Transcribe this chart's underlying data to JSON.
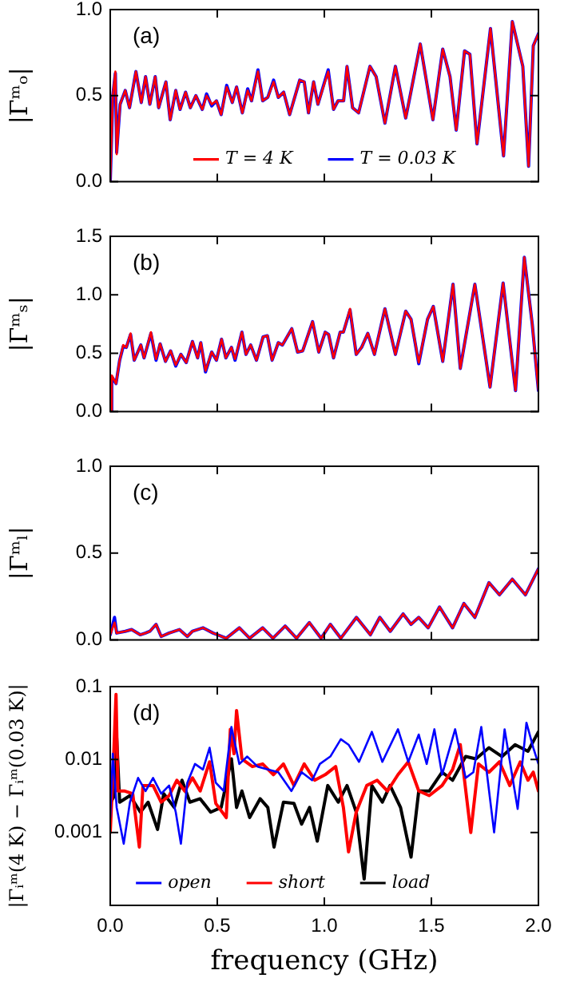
{
  "chart_data": [
    {
      "type": "line",
      "ylabel": "|Γᵐₒ|",
      "annotations": [
        "(a)"
      ],
      "grid": false,
      "legend": "bottom",
      "tick_labels": "y",
      "line_style": "solid",
      "xlim": [
        0,
        2
      ],
      "xticks": [
        0,
        0.5,
        1,
        1.5,
        2
      ],
      "ylim": [
        0,
        1
      ],
      "yticks": [
        {
          "value": 0,
          "label": "0.0"
        },
        {
          "value": 0.5,
          "label": "0.5"
        },
        {
          "value": 1,
          "label": "1.0"
        }
      ],
      "series": [
        {
          "name": "T = 4 K",
          "color": "#ff0000",
          "x": [
            0,
            0.012,
            0.024,
            0.03,
            0.046,
            0.07,
            0.09,
            0.12,
            0.145,
            0.165,
            0.185,
            0.21,
            0.226,
            0.26,
            0.28,
            0.306,
            0.326,
            0.352,
            0.374,
            0.4,
            0.43,
            0.45,
            0.474,
            0.496,
            0.518,
            0.544,
            0.57,
            0.59,
            0.617,
            0.642,
            0.66,
            0.69,
            0.712,
            0.736,
            0.763,
            0.785,
            0.81,
            0.838,
            0.885,
            0.906,
            0.926,
            0.95,
            0.97,
            1.018,
            1.043,
            1.064,
            1.09,
            1.106,
            1.132,
            1.16,
            1.213,
            1.242,
            1.283,
            1.332,
            1.38,
            1.404,
            1.448,
            1.507,
            1.553,
            1.587,
            1.616,
            1.655,
            1.68,
            1.713,
            1.776,
            1.837,
            1.878,
            1.927,
            1.954,
            1.976,
            2.0
          ],
          "values": [
            0,
            0.5,
            0.64,
            0.16,
            0.45,
            0.53,
            0.43,
            0.64,
            0.46,
            0.61,
            0.45,
            0.61,
            0.43,
            0.58,
            0.36,
            0.53,
            0.42,
            0.52,
            0.43,
            0.5,
            0.42,
            0.5,
            0.45,
            0.47,
            0.39,
            0.55,
            0.46,
            0.55,
            0.4,
            0.53,
            0.47,
            0.64,
            0.47,
            0.49,
            0.58,
            0.49,
            0.52,
            0.39,
            0.59,
            0.58,
            0.4,
            0.58,
            0.45,
            0.64,
            0.42,
            0.47,
            0.47,
            0.67,
            0.43,
            0.4,
            0.67,
            0.61,
            0.34,
            0.67,
            0.37,
            0.52,
            0.8,
            0.36,
            0.77,
            0.61,
            0.3,
            0.76,
            0.74,
            0.22,
            0.89,
            0.15,
            0.93,
            0.67,
            0.09,
            0.79,
            0.86
          ]
        },
        {
          "name": "T = 0.03 K",
          "color": "#0000ff",
          "x": [
            0,
            0.012,
            0.024,
            0.03,
            0.046,
            0.07,
            0.09,
            0.12,
            0.145,
            0.165,
            0.185,
            0.21,
            0.226,
            0.26,
            0.28,
            0.306,
            0.326,
            0.352,
            0.374,
            0.4,
            0.43,
            0.45,
            0.474,
            0.496,
            0.518,
            0.544,
            0.57,
            0.59,
            0.617,
            0.642,
            0.66,
            0.69,
            0.712,
            0.736,
            0.763,
            0.785,
            0.81,
            0.838,
            0.885,
            0.906,
            0.926,
            0.95,
            0.97,
            1.018,
            1.043,
            1.064,
            1.09,
            1.106,
            1.132,
            1.16,
            1.213,
            1.242,
            1.283,
            1.332,
            1.38,
            1.404,
            1.448,
            1.507,
            1.553,
            1.587,
            1.616,
            1.655,
            1.68,
            1.713,
            1.776,
            1.837,
            1.878,
            1.927,
            1.954,
            1.976,
            2.0
          ],
          "values": [
            0,
            0.5,
            0.63,
            0.17,
            0.45,
            0.53,
            0.43,
            0.64,
            0.46,
            0.61,
            0.45,
            0.61,
            0.43,
            0.58,
            0.36,
            0.53,
            0.42,
            0.52,
            0.43,
            0.5,
            0.42,
            0.51,
            0.44,
            0.47,
            0.39,
            0.56,
            0.46,
            0.55,
            0.4,
            0.54,
            0.47,
            0.65,
            0.47,
            0.49,
            0.59,
            0.49,
            0.52,
            0.39,
            0.59,
            0.58,
            0.4,
            0.58,
            0.45,
            0.65,
            0.42,
            0.47,
            0.47,
            0.67,
            0.43,
            0.4,
            0.67,
            0.61,
            0.34,
            0.67,
            0.37,
            0.52,
            0.8,
            0.36,
            0.77,
            0.61,
            0.3,
            0.76,
            0.74,
            0.22,
            0.89,
            0.15,
            0.93,
            0.67,
            0.09,
            0.79,
            0.86
          ]
        }
      ]
    },
    {
      "type": "line",
      "ylabel": "|Γᵐₛ|",
      "annotations": [
        "(b)"
      ],
      "grid": false,
      "tick_labels": "y",
      "line_style": "solid",
      "xlim": [
        0,
        2
      ],
      "xticks": [
        0,
        0.5,
        1,
        1.5,
        2
      ],
      "ylim": [
        0,
        1.5
      ],
      "yticks": [
        {
          "value": 0,
          "label": "0.0"
        },
        {
          "value": 0.5,
          "label": "0.5"
        },
        {
          "value": 1,
          "label": "1.0"
        },
        {
          "value": 1.5,
          "label": "1.5"
        }
      ],
      "series": [
        {
          "color": "#ff0000",
          "x": [
            0,
            0.007,
            0.027,
            0.044,
            0.061,
            0.075,
            0.095,
            0.112,
            0.143,
            0.158,
            0.19,
            0.214,
            0.233,
            0.258,
            0.282,
            0.306,
            0.33,
            0.355,
            0.384,
            0.408,
            0.423,
            0.445,
            0.474,
            0.496,
            0.52,
            0.54,
            0.566,
            0.583,
            0.615,
            0.634,
            0.656,
            0.683,
            0.714,
            0.734,
            0.756,
            0.785,
            0.804,
            0.848,
            0.875,
            0.899,
            0.945,
            0.974,
            1.004,
            1.02,
            1.043,
            1.074,
            1.089,
            1.12,
            1.149,
            1.174,
            1.203,
            1.234,
            1.283,
            1.332,
            1.38,
            1.405,
            1.441,
            1.482,
            1.509,
            1.553,
            1.601,
            1.635,
            1.703,
            1.774,
            1.835,
            1.893,
            1.934,
            1.971,
            2.0
          ],
          "values": [
            0,
            0.31,
            0.24,
            0.44,
            0.57,
            0.55,
            0.67,
            0.44,
            0.57,
            0.46,
            0.68,
            0.45,
            0.58,
            0.43,
            0.52,
            0.4,
            0.49,
            0.42,
            0.6,
            0.46,
            0.59,
            0.35,
            0.51,
            0.44,
            0.62,
            0.46,
            0.55,
            0.45,
            0.68,
            0.49,
            0.57,
            0.44,
            0.64,
            0.65,
            0.44,
            0.59,
            0.57,
            0.71,
            0.51,
            0.52,
            0.77,
            0.51,
            0.68,
            0.66,
            0.46,
            0.68,
            0.68,
            0.88,
            0.49,
            0.55,
            0.67,
            0.49,
            0.88,
            0.49,
            0.86,
            0.79,
            0.42,
            0.79,
            0.9,
            0.43,
            1.09,
            0.37,
            1.09,
            0.21,
            1.1,
            0.18,
            1.32,
            0.75,
            0.18
          ]
        },
        {
          "color": "#0000ff",
          "x": [
            0,
            0.007,
            0.027,
            0.044,
            0.061,
            0.075,
            0.095,
            0.112,
            0.143,
            0.158,
            0.19,
            0.214,
            0.233,
            0.258,
            0.282,
            0.306,
            0.33,
            0.355,
            0.384,
            0.408,
            0.423,
            0.445,
            0.474,
            0.496,
            0.52,
            0.54,
            0.566,
            0.583,
            0.615,
            0.634,
            0.656,
            0.683,
            0.714,
            0.734,
            0.756,
            0.785,
            0.804,
            0.848,
            0.875,
            0.899,
            0.945,
            0.974,
            1.004,
            1.02,
            1.043,
            1.074,
            1.089,
            1.12,
            1.149,
            1.174,
            1.203,
            1.234,
            1.283,
            1.332,
            1.38,
            1.405,
            1.441,
            1.482,
            1.509,
            1.553,
            1.601,
            1.635,
            1.703,
            1.774,
            1.835,
            1.893,
            1.934,
            1.971,
            2.0
          ],
          "values": [
            0,
            0.3,
            0.24,
            0.44,
            0.56,
            0.55,
            0.66,
            0.44,
            0.57,
            0.46,
            0.67,
            0.44,
            0.58,
            0.43,
            0.52,
            0.39,
            0.49,
            0.42,
            0.6,
            0.46,
            0.59,
            0.34,
            0.51,
            0.44,
            0.62,
            0.46,
            0.55,
            0.44,
            0.68,
            0.49,
            0.57,
            0.44,
            0.64,
            0.65,
            0.44,
            0.59,
            0.57,
            0.71,
            0.51,
            0.52,
            0.77,
            0.51,
            0.68,
            0.66,
            0.46,
            0.68,
            0.68,
            0.87,
            0.49,
            0.55,
            0.67,
            0.49,
            0.88,
            0.49,
            0.86,
            0.79,
            0.41,
            0.79,
            0.9,
            0.43,
            1.09,
            0.37,
            1.09,
            0.21,
            1.1,
            0.18,
            1.32,
            0.75,
            0.18
          ]
        }
      ]
    },
    {
      "type": "line",
      "ylabel": "|Γᵐₗ|",
      "annotations": [
        "(c)"
      ],
      "grid": false,
      "tick_labels": "y",
      "line_style": "solid",
      "xlim": [
        0,
        2
      ],
      "xticks": [
        0,
        0.5,
        1,
        1.5,
        2
      ],
      "ylim": [
        0,
        1
      ],
      "yticks": [
        {
          "value": 0,
          "label": "0.0"
        },
        {
          "value": 0.5,
          "label": "0.5"
        },
        {
          "value": 1,
          "label": "1.0"
        }
      ],
      "series": [
        {
          "color": "#ff0000",
          "x": [
            0,
            0.02,
            0.03,
            0.07,
            0.1,
            0.14,
            0.165,
            0.185,
            0.214,
            0.238,
            0.275,
            0.323,
            0.36,
            0.384,
            0.433,
            0.48,
            0.542,
            0.603,
            0.651,
            0.712,
            0.76,
            0.817,
            0.87,
            0.93,
            0.985,
            1.028,
            1.077,
            1.15,
            1.215,
            1.259,
            1.308,
            1.368,
            1.405,
            1.441,
            1.485,
            1.538,
            1.599,
            1.652,
            1.703,
            1.769,
            1.818,
            1.878,
            1.939,
            2.0
          ],
          "values": [
            0.03,
            0.1,
            0.04,
            0.05,
            0.06,
            0.03,
            0.04,
            0.05,
            0.09,
            0.02,
            0.04,
            0.06,
            0.02,
            0.05,
            0.07,
            0.04,
            0.01,
            0.07,
            0.01,
            0.07,
            0.01,
            0.08,
            0.01,
            0.1,
            0.01,
            0.09,
            0.01,
            0.13,
            0.03,
            0.13,
            0.05,
            0.15,
            0.09,
            0.13,
            0.07,
            0.19,
            0.07,
            0.21,
            0.13,
            0.33,
            0.26,
            0.35,
            0.26,
            0.41
          ]
        },
        {
          "color": "#0000ff",
          "x": [
            0,
            0.02,
            0.03,
            0.07,
            0.1,
            0.14,
            0.165,
            0.185,
            0.214,
            0.238,
            0.275,
            0.323,
            0.36,
            0.384,
            0.433,
            0.48,
            0.542,
            0.603,
            0.651,
            0.712,
            0.76,
            0.817,
            0.87,
            0.93,
            0.985,
            1.028,
            1.077,
            1.15,
            1.215,
            1.259,
            1.308,
            1.368,
            1.405,
            1.441,
            1.485,
            1.538,
            1.599,
            1.652,
            1.703,
            1.769,
            1.818,
            1.878,
            1.939,
            2.0
          ],
          "values": [
            0.03,
            0.13,
            0.04,
            0.05,
            0.06,
            0.03,
            0.04,
            0.05,
            0.09,
            0.02,
            0.04,
            0.06,
            0.02,
            0.05,
            0.07,
            0.04,
            0.01,
            0.07,
            0.01,
            0.07,
            0.01,
            0.08,
            0.01,
            0.1,
            0.01,
            0.09,
            0.01,
            0.13,
            0.03,
            0.13,
            0.05,
            0.15,
            0.09,
            0.13,
            0.07,
            0.19,
            0.07,
            0.21,
            0.13,
            0.33,
            0.26,
            0.35,
            0.26,
            0.41
          ]
        }
      ]
    },
    {
      "type": "line",
      "ylabel": "|Γᵢᵐ(4 K) − Γᵢᵐ(0.03 K)|",
      "xlabel": "frequency (GHz)",
      "annotations": [
        "(d)"
      ],
      "grid": false,
      "legend": "bottom",
      "log": "y",
      "line_style": "solid",
      "xlim": [
        0,
        2
      ],
      "xticks": [
        {
          "value": 0,
          "label": "0.0"
        },
        {
          "value": 0.5,
          "label": "0.5"
        },
        {
          "value": 1,
          "label": "1.0"
        },
        {
          "value": 1.5,
          "label": "1.5"
        },
        {
          "value": 2,
          "label": "2.0"
        }
      ],
      "ylim": [
        0.0001,
        0.1
      ],
      "yticks": [
        {
          "value": 0.0001,
          "label": null
        },
        0.001,
        0.01,
        0.1
      ],
      "series": [
        {
          "name": "open",
          "color": "#0000ff",
          "x": [
            0,
            0.012,
            0.03,
            0.063,
            0.092,
            0.13,
            0.165,
            0.2,
            0.238,
            0.275,
            0.306,
            0.33,
            0.36,
            0.396,
            0.433,
            0.464,
            0.493,
            0.53,
            0.566,
            0.603,
            0.64,
            0.688,
            0.736,
            0.785,
            0.846,
            0.894,
            0.943,
            0.979,
            1.028,
            1.077,
            1.113,
            1.162,
            1.222,
            1.271,
            1.344,
            1.392,
            1.441,
            1.478,
            1.514,
            1.55,
            1.611,
            1.66,
            1.696,
            1.733,
            1.793,
            1.842,
            1.903,
            1.944,
            1.976,
            2.0
          ],
          "values": [
            0.0016,
            0.012,
            0.0022,
            0.0007,
            0.0026,
            0.0056,
            0.0037,
            0.0056,
            0.0034,
            0.0044,
            0.0019,
            0.0007,
            0.0048,
            0.0087,
            0.0073,
            0.0145,
            0.0048,
            0.0037,
            0.028,
            0.0087,
            0.011,
            0.008,
            0.0073,
            0.0067,
            0.0037,
            0.0067,
            0.0052,
            0.0087,
            0.011,
            0.019,
            0.016,
            0.0093,
            0.024,
            0.0093,
            0.026,
            0.0093,
            0.022,
            0.0087,
            0.026,
            0.0062,
            0.026,
            0.0056,
            0.0067,
            0.028,
            0.001,
            0.026,
            0.0021,
            0.032,
            0.0145,
            0.0087
          ]
        },
        {
          "name": "short",
          "color": "#ff0000",
          "x": [
            0,
            0.015,
            0.027,
            0.036,
            0.068,
            0.105,
            0.136,
            0.153,
            0.2,
            0.238,
            0.275,
            0.311,
            0.348,
            0.384,
            0.42,
            0.464,
            0.493,
            0.542,
            0.561,
            0.578,
            0.59,
            0.615,
            0.664,
            0.712,
            0.762,
            0.809,
            0.858,
            0.906,
            0.955,
            1.004,
            1.053,
            1.089,
            1.113,
            1.149,
            1.198,
            1.247,
            1.295,
            1.344,
            1.392,
            1.441,
            1.49,
            1.55,
            1.599,
            1.635,
            1.684,
            1.72,
            1.769,
            1.818,
            1.866,
            1.915,
            1.951,
            1.976,
            2.0
          ],
          "values": [
            0.001,
            0.0093,
            0.078,
            0.0037,
            0.0037,
            0.0034,
            0.00063,
            0.0044,
            0.0044,
            0.0026,
            0.0032,
            0.0052,
            0.0037,
            0.0056,
            0.0037,
            0.0093,
            0.0025,
            0.0016,
            0.026,
            0.012,
            0.047,
            0.0102,
            0.008,
            0.0087,
            0.0062,
            0.0087,
            0.0044,
            0.0087,
            0.0052,
            0.0062,
            0.008,
            0.0022,
            0.00054,
            0.0019,
            0.0044,
            0.0052,
            0.0037,
            0.0062,
            0.0093,
            0.0037,
            0.0032,
            0.0044,
            0.0073,
            0.016,
            0.001,
            0.0087,
            0.0067,
            0.0093,
            0.0044,
            0.0093,
            0.0052,
            0.0067,
            0.0037
          ]
        },
        {
          "name": "load",
          "color": "#000000",
          "x": [
            0,
            0.019,
            0.03,
            0.044,
            0.092,
            0.141,
            0.177,
            0.221,
            0.25,
            0.299,
            0.335,
            0.372,
            0.42,
            0.469,
            0.518,
            0.566,
            0.59,
            0.615,
            0.651,
            0.7,
            0.736,
            0.765,
            0.809,
            0.858,
            0.894,
            0.931,
            0.967,
            1.016,
            1.065,
            1.106,
            1.149,
            1.186,
            1.222,
            1.271,
            1.307,
            1.356,
            1.405,
            1.441,
            1.49,
            1.55,
            1.599,
            1.66,
            1.708,
            1.769,
            1.83,
            1.891,
            1.951,
            2.0
          ],
          "values": [
            0.0025,
            0.0032,
            0.02,
            0.0026,
            0.0032,
            0.0019,
            0.0026,
            0.0011,
            0.0034,
            0.0022,
            0.0052,
            0.0026,
            0.0029,
            0.0019,
            0.0022,
            0.0102,
            0.0022,
            0.0037,
            0.0016,
            0.0029,
            0.0022,
            0.00063,
            0.0026,
            0.0025,
            0.0013,
            0.0022,
            0.00076,
            0.0044,
            0.0026,
            0.0044,
            0.0019,
            0.00023,
            0.0044,
            0.0026,
            0.0044,
            0.0022,
            0.00046,
            0.0037,
            0.0037,
            0.0067,
            0.0052,
            0.011,
            0.0102,
            0.0145,
            0.011,
            0.016,
            0.013,
            0.024
          ]
        }
      ]
    }
  ]
}
